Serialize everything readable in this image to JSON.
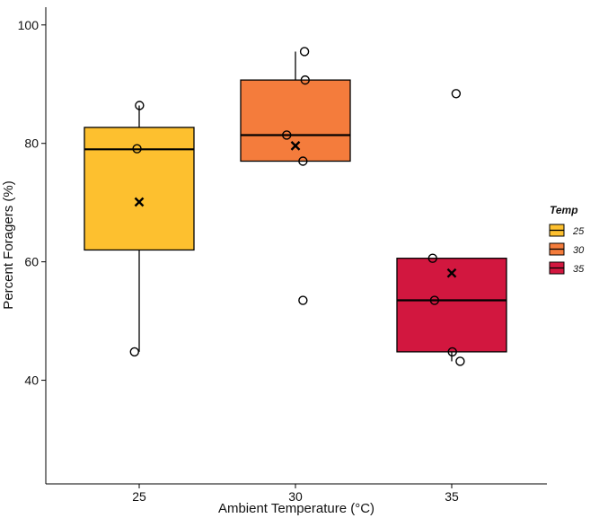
{
  "chart_data": {
    "type": "box",
    "title": "",
    "xlabel": "Ambient Temperature (°C)",
    "ylabel": "Percent Foragers (%)",
    "ylim": [
      22.5,
      103
    ],
    "yticks": [
      40,
      60,
      80,
      100
    ],
    "categories": [
      "25",
      "30",
      "35"
    ],
    "grid": false,
    "legend": {
      "title": "Temp",
      "position": "right",
      "entries": [
        {
          "label": "25",
          "color": "#FDC02F"
        },
        {
          "label": "30",
          "color": "#F47C3C"
        },
        {
          "label": "35",
          "color": "#D2173F"
        }
      ]
    },
    "boxes": [
      {
        "category": "25",
        "color": "#FDC02F",
        "whisker_low": 44.8,
        "q1": 62,
        "median": 79,
        "q3": 82.7,
        "whisker_high": 86.4,
        "mean": 70.1
      },
      {
        "category": "30",
        "color": "#F47C3C",
        "whisker_low": 77,
        "q1": 77,
        "median": 81.4,
        "q3": 90.7,
        "whisker_high": 95.5,
        "mean": 79.6
      },
      {
        "category": "35",
        "color": "#D2173F",
        "whisker_low": 43.2,
        "q1": 44.8,
        "median": 53.5,
        "q3": 60.6,
        "whisker_high": 60.6,
        "mean": 58.1
      }
    ],
    "points": [
      {
        "category": "25",
        "x": 24.85,
        "y": 44.8
      },
      {
        "category": "25",
        "x": 24.93,
        "y": 79.1
      },
      {
        "category": "25",
        "x": 25.01,
        "y": 86.4
      },
      {
        "category": "30",
        "x": 29.72,
        "y": 81.4
      },
      {
        "category": "30",
        "x": 30.24,
        "y": 53.5
      },
      {
        "category": "30",
        "x": 30.24,
        "y": 77.0
      },
      {
        "category": "30",
        "x": 30.29,
        "y": 95.5
      },
      {
        "category": "30",
        "x": 30.31,
        "y": 90.7
      },
      {
        "category": "35",
        "x": 34.39,
        "y": 60.6
      },
      {
        "category": "35",
        "x": 34.45,
        "y": 53.5
      },
      {
        "category": "35",
        "x": 35.02,
        "y": 44.8
      },
      {
        "category": "35",
        "x": 35.14,
        "y": 88.4
      },
      {
        "category": "35",
        "x": 35.27,
        "y": 43.2
      }
    ]
  }
}
